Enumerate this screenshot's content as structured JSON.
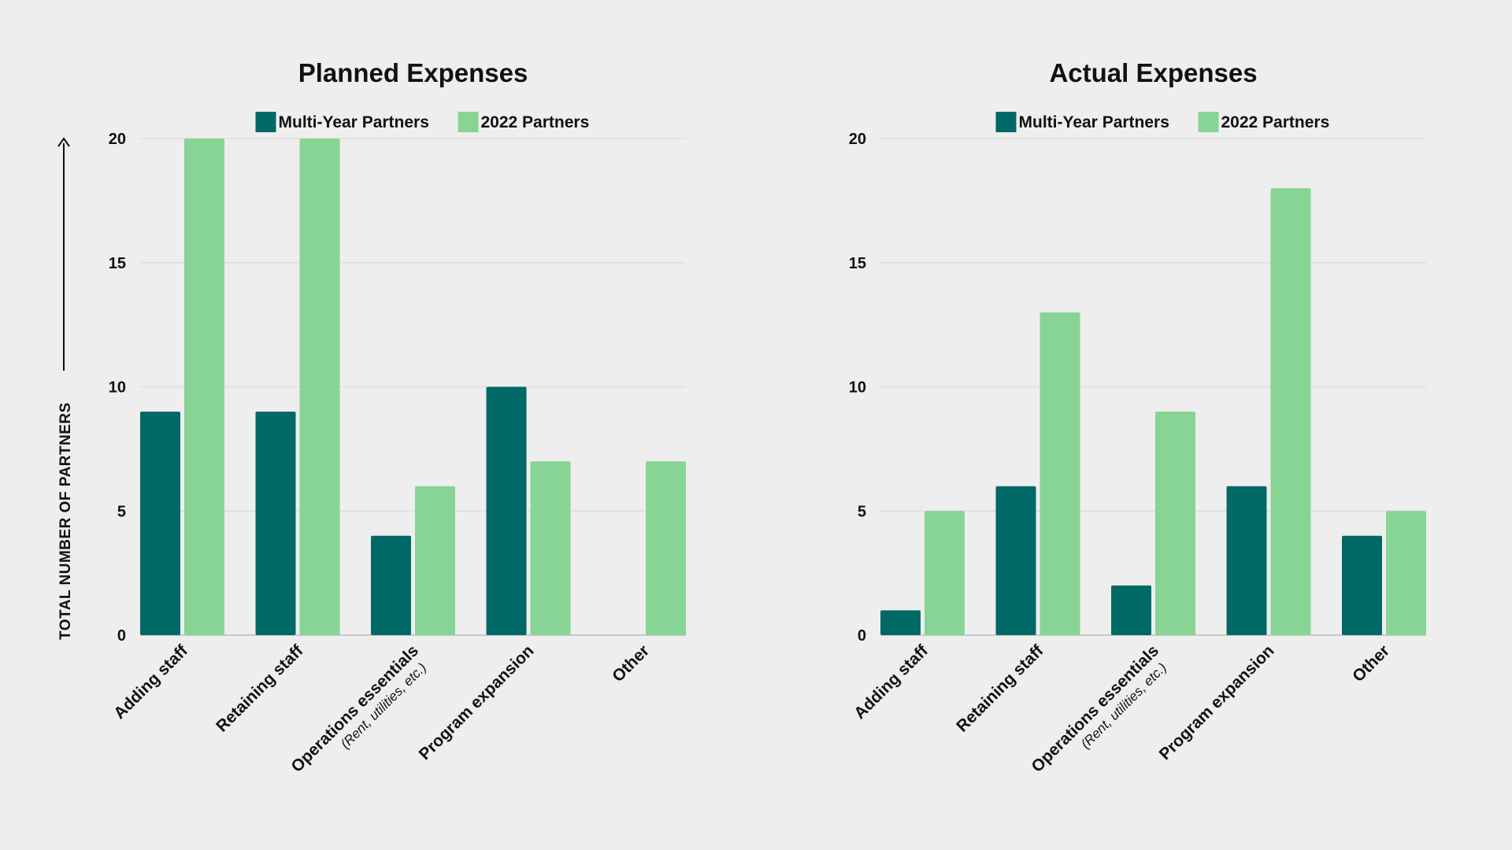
{
  "colors": {
    "background": "#eeeeee",
    "multi_year": "#006966",
    "partners_2022": "#88d494",
    "grid": "#dddddd"
  },
  "chart_data": [
    {
      "type": "bar",
      "title": "Planned Expenses",
      "ylabel": "TOTAL NUMBER OF PARTNERS",
      "ylim": [
        0,
        20
      ],
      "yticks": [
        "0",
        "5",
        "10",
        "15",
        "20"
      ],
      "grid": true,
      "legend": "top",
      "categories": [
        "Adding staff",
        "Retaining staff",
        "Operations essentials",
        "Program expansion",
        "Other"
      ],
      "category_subtitles": [
        "",
        "",
        "(Rent, utilities, etc.)",
        "",
        ""
      ],
      "series": [
        {
          "name": "Multi-Year Partners",
          "values": [
            9,
            9,
            4,
            10,
            0
          ]
        },
        {
          "name": "2022 Partners",
          "values": [
            20,
            20,
            6,
            7,
            7
          ]
        }
      ]
    },
    {
      "type": "bar",
      "title": "Actual Expenses",
      "ylabel": "",
      "ylim": [
        0,
        20
      ],
      "yticks": [
        "0",
        "5",
        "10",
        "15",
        "20"
      ],
      "grid": true,
      "legend": "top",
      "categories": [
        "Adding staff",
        "Retaining staff",
        "Operations essentials",
        "Program expansion",
        "Other"
      ],
      "category_subtitles": [
        "",
        "",
        "(Rent, utilities, etc.)",
        "",
        ""
      ],
      "series": [
        {
          "name": "Multi-Year Partners",
          "values": [
            1,
            6,
            2,
            6,
            4
          ]
        },
        {
          "name": "2022 Partners",
          "values": [
            5,
            13,
            9,
            18,
            5
          ]
        }
      ]
    }
  ]
}
